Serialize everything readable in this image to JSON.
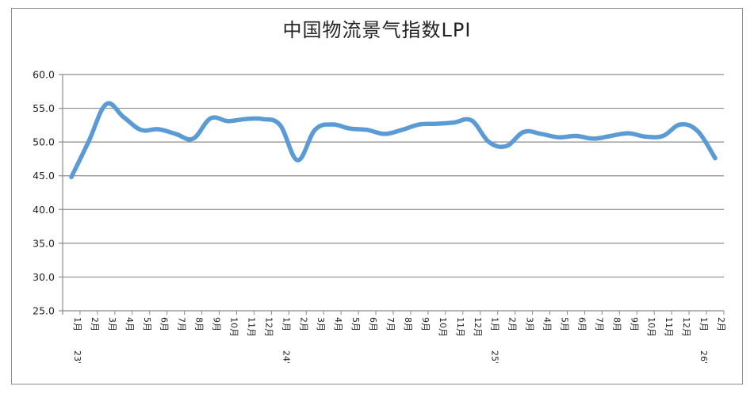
{
  "chart_data": {
    "type": "line",
    "title": "中国物流景气指数LPI",
    "xlabel": "",
    "ylabel": "",
    "ylim": [
      25.0,
      60.0
    ],
    "yticks": [
      "25.0",
      "30.0",
      "35.0",
      "40.0",
      "45.0",
      "50.0",
      "55.0",
      "60.0"
    ],
    "grid": true,
    "legend": null,
    "line_color": "#5b9bd5",
    "year_labels": [
      {
        "label": "23'",
        "index": 0
      },
      {
        "label": "24'",
        "index": 12
      },
      {
        "label": "25'",
        "index": 24
      },
      {
        "label": "26'",
        "index": 36
      }
    ],
    "categories": [
      "1月",
      "2月",
      "3月",
      "4月",
      "5月",
      "6月",
      "7月",
      "8月",
      "9月",
      "10月",
      "11月",
      "12月",
      "1月",
      "2月",
      "3月",
      "4月",
      "5月",
      "6月",
      "7月",
      "8月",
      "9月",
      "10月",
      "11月",
      "12月",
      "1月",
      "2月",
      "3月",
      "4月",
      "5月",
      "6月",
      "7月",
      "8月",
      "9月",
      "10月",
      "11月",
      "12月",
      "1月",
      "2月"
    ],
    "series": [
      {
        "name": "中国物流景气指数LPI",
        "values": [
          44.8,
          50.1,
          55.6,
          53.7,
          51.8,
          51.9,
          51.2,
          50.5,
          53.5,
          53.1,
          53.4,
          53.4,
          52.5,
          47.3,
          51.8,
          52.6,
          52.0,
          51.8,
          51.2,
          51.8,
          52.6,
          52.7,
          52.9,
          53.2,
          50.0,
          49.4,
          51.5,
          51.2,
          50.7,
          50.9,
          50.5,
          50.9,
          51.3,
          50.8,
          50.9,
          52.6,
          51.6,
          47.6
        ]
      }
    ]
  }
}
